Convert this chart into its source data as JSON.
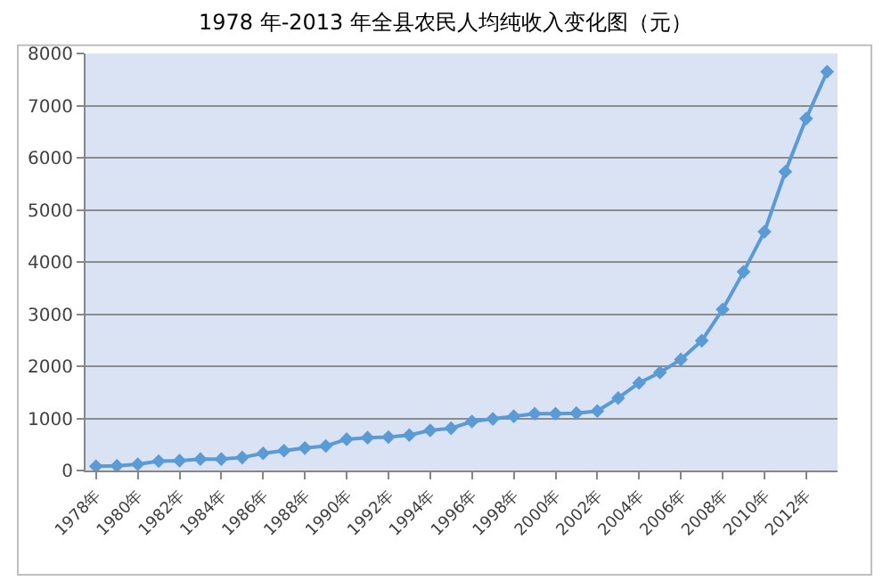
{
  "chart_data": {
    "type": "line",
    "title": "1978 年-2013 年全县农民人均纯收入变化图（元）",
    "categories": [
      "1978年",
      null,
      "1980年",
      null,
      "1982年",
      null,
      "1984年",
      null,
      "1986年",
      null,
      "1988年",
      null,
      "1990年",
      null,
      "1992年",
      null,
      "1994年",
      null,
      "1996年",
      null,
      "1998年",
      null,
      "2000年",
      null,
      "2002年",
      null,
      "2004年",
      null,
      "2006年",
      null,
      "2008年",
      null,
      "2010年",
      null,
      "2012年",
      null
    ],
    "series": [
      {
        "color": "#5b9bd5",
        "values": [
          80,
          90,
          120,
          180,
          190,
          220,
          220,
          250,
          330,
          380,
          430,
          470,
          600,
          630,
          640,
          680,
          770,
          810,
          940,
          990,
          1040,
          1090,
          1090,
          1100,
          1140,
          1390,
          1680,
          1880,
          2130,
          2490,
          3090,
          3810,
          4580,
          5730,
          6750,
          7650
        ]
      }
    ],
    "ylim": [
      0,
      8000
    ],
    "yticks": [
      0,
      1000,
      2000,
      3000,
      4000,
      5000,
      6000,
      7000,
      8000
    ],
    "grid": "y",
    "marker": "diamond",
    "line_style": "solid"
  }
}
